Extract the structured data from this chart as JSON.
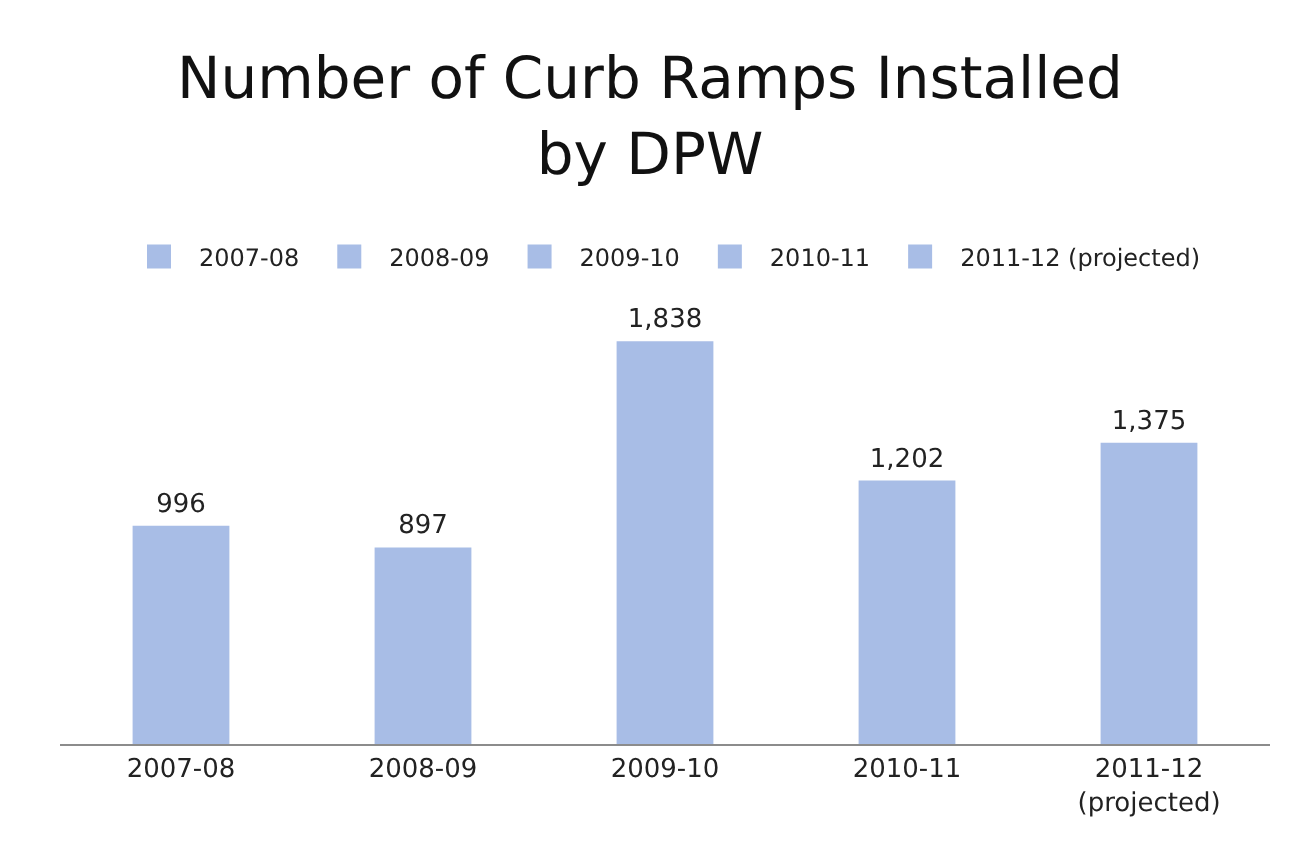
{
  "chart_data": {
    "type": "bar",
    "title": "Number of Curb Ramps Installed\nby DPW",
    "categories": [
      "2007-08",
      "2008-09",
      "2009-10",
      "2010-11",
      "2011-12 (projected)"
    ],
    "series": [
      {
        "name": "2007-08",
        "color": "#a8bde6",
        "values": [
          996,
          null,
          null,
          null,
          null
        ],
        "value_labels": [
          "996",
          null,
          null,
          null,
          null
        ]
      },
      {
        "name": "2008-09",
        "color": "#a8bde6",
        "values": [
          null,
          897,
          null,
          null,
          null
        ],
        "value_labels": [
          null,
          "897",
          null,
          null,
          null
        ]
      },
      {
        "name": "2009-10",
        "color": "#a8bde6",
        "values": [
          null,
          null,
          1838,
          null,
          null
        ],
        "value_labels": [
          null,
          null,
          "1,838",
          null,
          null
        ]
      },
      {
        "name": "2010-11",
        "color": "#a8bde6",
        "values": [
          null,
          null,
          null,
          1202,
          null
        ],
        "value_labels": [
          null,
          null,
          null,
          "1,202",
          null
        ]
      },
      {
        "name": "2011-12 (projected)",
        "color": "#a8bde6",
        "values": [
          null,
          null,
          null,
          null,
          1375
        ],
        "value_labels": [
          null,
          null,
          null,
          null,
          "1,375"
        ]
      }
    ],
    "legend": "top"
  }
}
